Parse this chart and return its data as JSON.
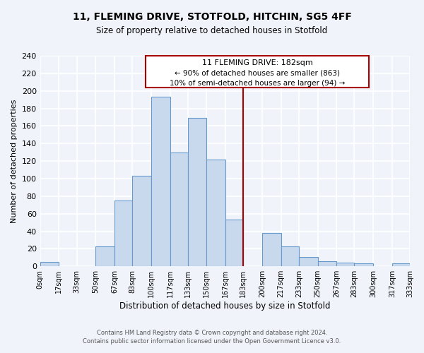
{
  "title": "11, FLEMING DRIVE, STOTFOLD, HITCHIN, SG5 4FF",
  "subtitle": "Size of property relative to detached houses in Stotfold",
  "xlabel": "Distribution of detached houses by size in Stotfold",
  "ylabel": "Number of detached properties",
  "bin_edges": [
    0,
    17,
    33,
    50,
    67,
    83,
    100,
    117,
    133,
    150,
    167,
    183,
    200,
    217,
    233,
    250,
    267,
    283,
    300,
    317,
    333
  ],
  "bar_heights": [
    5,
    0,
    0,
    23,
    75,
    103,
    193,
    130,
    169,
    122,
    53,
    0,
    38,
    23,
    11,
    6,
    4,
    3,
    0,
    3
  ],
  "bar_color": "#c8d9ee",
  "bar_edgecolor": "#6699cc",
  "vline_x": 183,
  "vline_color": "#aa0000",
  "annotation_title": "11 FLEMING DRIVE: 182sqm",
  "annotation_line1": "← 90% of detached houses are smaller (863)",
  "annotation_line2": "10% of semi-detached houses are larger (94) →",
  "annotation_box_edgecolor": "#aa0000",
  "ylim": [
    0,
    240
  ],
  "yticks": [
    0,
    20,
    40,
    60,
    80,
    100,
    120,
    140,
    160,
    180,
    200,
    220,
    240
  ],
  "tick_labels": [
    "0sqm",
    "17sqm",
    "33sqm",
    "50sqm",
    "67sqm",
    "83sqm",
    "100sqm",
    "117sqm",
    "133sqm",
    "150sqm",
    "167sqm",
    "183sqm",
    "200sqm",
    "217sqm",
    "233sqm",
    "250sqm",
    "267sqm",
    "283sqm",
    "300sqm",
    "317sqm",
    "333sqm"
  ],
  "footer_line1": "Contains HM Land Registry data © Crown copyright and database right 2024.",
  "footer_line2": "Contains public sector information licensed under the Open Government Licence v3.0.",
  "bg_color": "#f0f4fa"
}
